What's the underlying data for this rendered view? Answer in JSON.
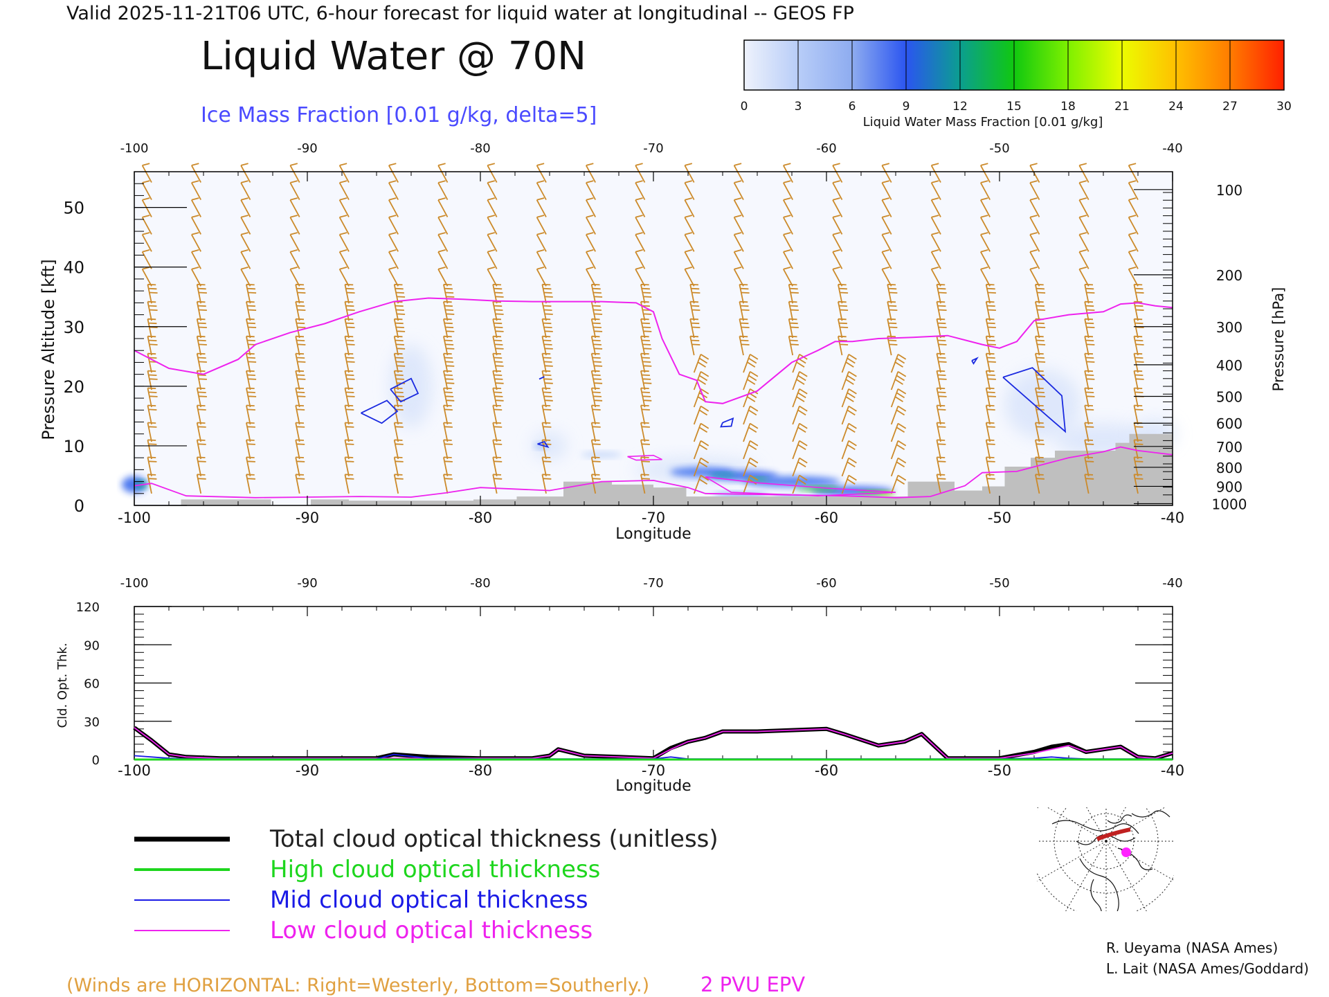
{
  "header": {
    "valid_line": "Valid 2025-11-21T06 UTC, 6-hour forecast for liquid water at longitudinal -- GEOS FP",
    "title": "Liquid Water @ 70N",
    "subtitle": "Ice Mass Fraction [0.01 g/kg, delta=5]",
    "subtitle_color": "#4a4aff"
  },
  "colorbar": {
    "ticks": [
      "0",
      "3",
      "6",
      "9",
      "12",
      "15",
      "18",
      "21",
      "24",
      "27",
      "30"
    ],
    "label": "Liquid Water Mass Fraction [0.01 g/kg]",
    "colors": [
      "#eef2fc",
      "#b8cdf8",
      "#8eacf0",
      "#2b55f0",
      "#0b9e90",
      "#10c810",
      "#7ef000",
      "#ecfc00",
      "#ffc000",
      "#ff7c00",
      "#ff2000"
    ]
  },
  "chart_data": [
    {
      "type": "heatmap",
      "title": "Liquid Water @ 70N",
      "xlabel": "Longitude",
      "ylabel": "Pressure Altitude [kft]",
      "y2label": "Pressure [hPa]",
      "xlim": [
        -100,
        -40
      ],
      "ylim": [
        0,
        56
      ],
      "x_ticks": [
        "-100",
        "-90",
        "-80",
        "-70",
        "-60",
        "-50",
        "-40"
      ],
      "y_ticks": [
        "0",
        "10",
        "20",
        "30",
        "40",
        "50"
      ],
      "pressure_ticks": [
        "100",
        "200",
        "300",
        "400",
        "500",
        "600",
        "700",
        "800",
        "900",
        "1000"
      ],
      "pressure_tick_alt_kft": [
        53,
        38.7,
        30,
        23.6,
        18.3,
        13.8,
        9.9,
        6.4,
        3.2,
        0.3
      ],
      "epv_2pvu_line": {
        "color": "#ee22ee",
        "x": [
          -100,
          -98,
          -96,
          -94,
          -93,
          -91,
          -89,
          -87,
          -85,
          -83,
          -81,
          -79,
          -77,
          -75,
          -73,
          -71,
          -70,
          -69.5,
          -68.5,
          -67.5,
          -67,
          -66,
          -64,
          -62,
          -60.5,
          -59.5,
          -58.5,
          -57,
          -55,
          -53,
          -51,
          -50,
          -49,
          -48,
          -46,
          -44,
          -43,
          -42,
          -41,
          -40
        ],
        "y": [
          26,
          23,
          22,
          24.5,
          27,
          29,
          30.5,
          32.5,
          34.2,
          34.8,
          34.6,
          34.3,
          34.2,
          34.2,
          34.2,
          34,
          32.5,
          28,
          22,
          21,
          17.4,
          17.1,
          19.2,
          24,
          26,
          27.5,
          27.5,
          28,
          28.2,
          28.5,
          27,
          26.4,
          27.5,
          31,
          32,
          32.5,
          33.8,
          34,
          33.5,
          33.2
        ]
      },
      "ice_contours_5": [
        {
          "x": [
            -86.9,
            -85.4,
            -84.8,
            -85.7,
            -86.9
          ],
          "y": [
            15.5,
            17.6,
            15.8,
            13.8,
            15.5
          ]
        },
        {
          "x": [
            -85.2,
            -84.0,
            -83.6,
            -84.6,
            -85.2
          ],
          "y": [
            19.5,
            21.3,
            18.8,
            17.4,
            19.5
          ]
        },
        {
          "x": [
            -66.0,
            -65.4,
            -65.5,
            -66.1,
            -66.0
          ],
          "y": [
            13.9,
            14.6,
            13.3,
            13.2,
            13.9
          ]
        },
        {
          "x": [
            -49.8,
            -48.1,
            -46.4,
            -46.2,
            -47.2,
            -49.8
          ],
          "y": [
            21.5,
            23.1,
            18.4,
            12.4,
            14.9,
            21.5
          ]
        },
        {
          "x": [
            -76.7,
            -76.3,
            -76.1,
            -76.7
          ],
          "y": [
            10.3,
            10.7,
            9.8,
            10.3
          ]
        },
        {
          "x": [
            -76.6,
            -76.3,
            -76.6
          ],
          "y": [
            21.2,
            21.6,
            21.2
          ]
        },
        {
          "x": [
            -51.6,
            -51.3,
            -51.5,
            -51.6
          ],
          "y": [
            24.3,
            24.7,
            23.8,
            24.3
          ]
        }
      ],
      "liquid_water_band_values": [
        {
          "x_range": [
            -67.5,
            -56
          ],
          "y_range": [
            1,
            6
          ],
          "max_value": 18
        },
        {
          "x_range": [
            -100,
            -99
          ],
          "y_range": [
            2,
            6
          ],
          "max_value": 10
        }
      ],
      "terrain": {
        "color": "#bfbfbf",
        "x": [
          -97.3,
          -92.1,
          -92.1,
          -89.8,
          -89.8,
          -87.6,
          -87.6,
          -80.4,
          -80.4,
          -77.9,
          -77.9,
          -75.2,
          -75.2,
          -72.4,
          -72.4,
          -70.0,
          -70.0,
          -68.1,
          -68.1,
          -55.3,
          -55.3,
          -52.6,
          -52.6,
          -51.0,
          -51.0,
          -49.7,
          -49.7,
          -48.2,
          -48.2,
          -46.8,
          -46.8,
          -43.3,
          -43.3,
          -42.5,
          -42.5,
          -40
        ],
        "y": [
          1,
          1,
          0,
          0,
          1,
          1,
          0.8,
          0.8,
          1,
          1,
          1.5,
          1.5,
          4,
          4,
          3.5,
          3.5,
          3,
          3,
          1.5,
          1.5,
          4,
          4,
          2.5,
          2.5,
          3.2,
          3.2,
          6.5,
          6.5,
          8,
          8,
          9.2,
          9.2,
          10.5,
          10.5,
          12,
          12
        ]
      },
      "wind_barb_color": "#cc8a2a"
    },
    {
      "type": "line",
      "xlabel": "Longitude",
      "ylabel": "Cld. Opt. Thk.",
      "xlim": [
        -100,
        -40
      ],
      "ylim": [
        0,
        120
      ],
      "x_ticks": [
        "-100",
        "-90",
        "-80",
        "-70",
        "-60",
        "-50",
        "-40"
      ],
      "y_ticks": [
        "0",
        "30",
        "60",
        "90",
        "120"
      ],
      "x": [
        -100,
        -99,
        -98,
        -97,
        -95,
        -90,
        -86,
        -85,
        -83,
        -80,
        -77,
        -76,
        -75.5,
        -74,
        -72,
        -70,
        -69,
        -68,
        -67,
        -66,
        -64,
        -62,
        -60,
        -59,
        -57,
        -55.5,
        -54.5,
        -53,
        -50,
        -48,
        -47,
        -46,
        -45,
        -44,
        -43,
        -42,
        -41,
        -40
      ],
      "series": [
        {
          "name": "Total cloud optical thickness (unitless)",
          "color": "#000000",
          "values": [
            25,
            15,
            4,
            2,
            1,
            1,
            1,
            4,
            2,
            1,
            1,
            3,
            8,
            3,
            2,
            1,
            9,
            14,
            17,
            22,
            22,
            23,
            24,
            20,
            11,
            14,
            20,
            1,
            1,
            6,
            10,
            12,
            6,
            8,
            10,
            2,
            1,
            5
          ]
        },
        {
          "name": "High cloud optical thickness",
          "color": "#1ed61e",
          "values": [
            0,
            0,
            0,
            0,
            0,
            0,
            0,
            0,
            0,
            0,
            0,
            0,
            0,
            0,
            0,
            0,
            0,
            0,
            0,
            0,
            0,
            0,
            0,
            0,
            0,
            0,
            0,
            0,
            0,
            0,
            0,
            0,
            0,
            0,
            0,
            0,
            0,
            0
          ]
        },
        {
          "name": "Mid cloud optical thickness",
          "color": "#1a1ae6",
          "values": [
            3,
            2,
            1,
            0.5,
            0.5,
            0.5,
            0.5,
            4,
            1,
            0.5,
            0.5,
            0.5,
            0.5,
            0.5,
            0.5,
            0.5,
            2,
            0.5,
            0.5,
            0.5,
            0.5,
            0.5,
            0.5,
            0.5,
            0.5,
            0.5,
            0.5,
            0.5,
            0.5,
            1,
            2,
            1,
            0.5,
            0.5,
            0.5,
            0.5,
            0.5,
            0.5
          ]
        },
        {
          "name": "Low cloud optical thickness",
          "color": "#ee22ee",
          "values": [
            25,
            15,
            4,
            2,
            1,
            1,
            1,
            1,
            1,
            1,
            1,
            3,
            8,
            3,
            2,
            1,
            8,
            14,
            17,
            22,
            22,
            23,
            24,
            20,
            11,
            14,
            20,
            1,
            1,
            5,
            8,
            11,
            6,
            8,
            10,
            2,
            1,
            5
          ]
        }
      ]
    }
  ],
  "footer": {
    "winds_note": "(Winds are HORIZONTAL: Right=Westerly, Bottom=Southerly.)",
    "winds_note_color": "#e0a040",
    "epv_label": "2 PVU EPV",
    "epv_color": "#ee22ee",
    "credit_1": "R. Ueyama (NASA Ames)",
    "credit_2": "L. Lait (NASA Ames/Goddard)"
  },
  "inset_map": {
    "marker_color": "#ff22ff",
    "track_color": "#c02020"
  }
}
